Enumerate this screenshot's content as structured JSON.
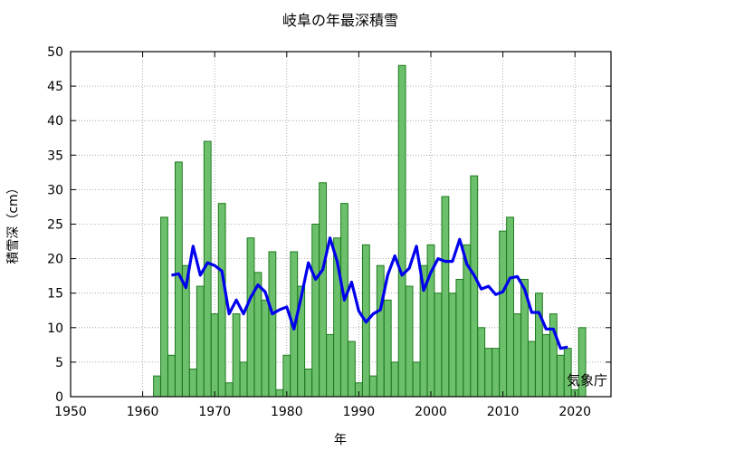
{
  "chart_data": {
    "type": "bar",
    "title": "岐阜の年最深積雪",
    "xlabel": "年",
    "ylabel": "積雪深（cm）",
    "credit": "気象庁",
    "xlim": [
      1950,
      2025
    ],
    "ylim": [
      0,
      50
    ],
    "xticks": [
      "1950",
      "1960",
      "1970",
      "1980",
      "1990",
      "2000",
      "2010",
      "2020"
    ],
    "yticks": [
      "0",
      "5",
      "10",
      "15",
      "20",
      "25",
      "30",
      "35",
      "40",
      "45",
      "50"
    ],
    "grid": true,
    "bar_color": "#6cc06c",
    "bar_edge_color": "#1e7a1e",
    "line_color": "#0000ee",
    "series": [
      {
        "kind": "bar",
        "years": [
          1962,
          1963,
          1964,
          1965,
          1966,
          1967,
          1968,
          1969,
          1970,
          1971,
          1972,
          1973,
          1974,
          1975,
          1976,
          1977,
          1978,
          1979,
          1980,
          1981,
          1982,
          1983,
          1984,
          1985,
          1986,
          1987,
          1988,
          1989,
          1990,
          1991,
          1992,
          1993,
          1994,
          1995,
          1996,
          1997,
          1998,
          1999,
          2000,
          2001,
          2002,
          2003,
          2004,
          2005,
          2006,
          2007,
          2008,
          2009,
          2010,
          2011,
          2012,
          2013,
          2014,
          2015,
          2016,
          2017,
          2018,
          2019,
          2020,
          2021
        ],
        "values": [
          3,
          26,
          6,
          34,
          19,
          4,
          16,
          37,
          12,
          28,
          2,
          12,
          5,
          23,
          18,
          14,
          21,
          1,
          6,
          21,
          16,
          4,
          25,
          31,
          9,
          23,
          28,
          8,
          2,
          22,
          3,
          19,
          14,
          5,
          48,
          16,
          5,
          19,
          22,
          15,
          29,
          15,
          17,
          22,
          32,
          10,
          7,
          7,
          24,
          26,
          12,
          17,
          8,
          15,
          9,
          12,
          6,
          7,
          1,
          10
        ]
      },
      {
        "kind": "line",
        "years": [
          1964,
          1965,
          1966,
          1967,
          1968,
          1969,
          1970,
          1971,
          1972,
          1973,
          1974,
          1975,
          1976,
          1977,
          1978,
          1979,
          1980,
          1981,
          1982,
          1983,
          1984,
          1985,
          1986,
          1987,
          1988,
          1989,
          1990,
          1991,
          1992,
          1993,
          1994,
          1995,
          1996,
          1997,
          1998,
          1999,
          2000,
          2001,
          2002,
          2003,
          2004,
          2005,
          2006,
          2007,
          2008,
          2009,
          2010,
          2011,
          2012,
          2013,
          2014,
          2015,
          2016,
          2017,
          2018,
          2019
        ],
        "values": [
          17.6,
          17.8,
          15.8,
          21.8,
          17.6,
          19.4,
          19.0,
          18.2,
          12.0,
          14.0,
          12.0,
          14.4,
          16.2,
          15.2,
          12.0,
          12.6,
          13.0,
          9.8,
          14.4,
          19.4,
          17.0,
          18.4,
          23.0,
          19.6,
          14.0,
          16.6,
          12.4,
          10.8,
          12.0,
          12.6,
          17.6,
          20.4,
          17.6,
          18.6,
          21.8,
          15.4,
          18.0,
          20.0,
          19.6,
          19.6,
          22.8,
          19.2,
          17.6,
          15.6,
          16.0,
          14.8,
          15.2,
          17.2,
          17.4,
          15.6,
          12.2,
          12.2,
          9.8,
          9.8,
          7.0,
          7.2
        ]
      }
    ]
  }
}
